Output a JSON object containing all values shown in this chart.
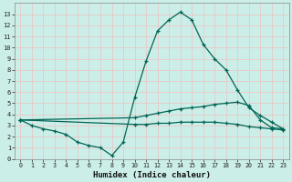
{
  "xlabel": "Humidex (Indice chaleur)",
  "xlim": [
    -0.5,
    23.5
  ],
  "ylim": [
    0,
    14
  ],
  "yticks": [
    0,
    1,
    2,
    3,
    4,
    5,
    6,
    7,
    8,
    9,
    10,
    11,
    12,
    13
  ],
  "xticks": [
    0,
    1,
    2,
    3,
    4,
    5,
    6,
    7,
    8,
    9,
    10,
    11,
    12,
    13,
    14,
    15,
    16,
    17,
    18,
    19,
    20,
    21,
    22,
    23
  ],
  "bg_color": "#cceee8",
  "grid_color": "#e8c8c8",
  "line_color": "#006655",
  "line1_x": [
    0,
    1,
    2,
    3,
    4,
    5,
    6,
    7,
    8,
    9,
    10,
    11,
    12,
    13,
    14,
    15,
    16,
    17,
    18,
    19,
    20,
    21,
    22,
    23
  ],
  "line1_y": [
    3.5,
    3.0,
    2.7,
    2.5,
    2.2,
    1.5,
    1.2,
    1.0,
    0.3,
    1.5,
    5.5,
    8.8,
    11.5,
    12.5,
    13.2,
    12.5,
    10.3,
    9.0,
    8.0,
    6.2,
    4.6,
    3.9,
    3.3,
    2.7
  ],
  "line2_x": [
    0,
    10,
    11,
    12,
    13,
    14,
    15,
    16,
    17,
    18,
    19,
    20,
    21,
    22,
    23
  ],
  "line2_y": [
    3.5,
    3.7,
    3.9,
    4.1,
    4.3,
    4.5,
    4.6,
    4.7,
    4.9,
    5.0,
    5.1,
    4.8,
    3.5,
    2.8,
    2.7
  ],
  "line3_x": [
    0,
    10,
    11,
    12,
    13,
    14,
    15,
    16,
    17,
    18,
    19,
    20,
    21,
    22,
    23
  ],
  "line3_y": [
    3.5,
    3.1,
    3.1,
    3.2,
    3.2,
    3.3,
    3.3,
    3.3,
    3.3,
    3.2,
    3.1,
    2.9,
    2.8,
    2.7,
    2.6
  ]
}
